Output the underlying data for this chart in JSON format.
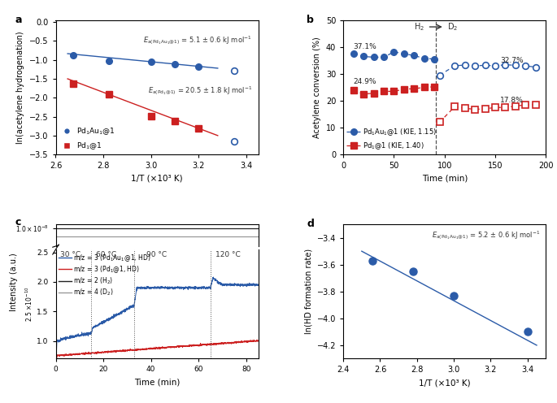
{
  "panel_a": {
    "blue_x": [
      2.675,
      2.825,
      3.0,
      3.1,
      3.2
    ],
    "blue_y": [
      -0.88,
      -1.02,
      -1.05,
      -1.12,
      -1.18
    ],
    "blue_open_x": [
      3.35
    ],
    "blue_open_y": [
      -1.28
    ],
    "blue_open2_x": [
      3.35
    ],
    "blue_open2_y": [
      -3.15
    ],
    "red_x": [
      2.675,
      2.825,
      3.0,
      3.1,
      3.2
    ],
    "red_y": [
      -1.62,
      -1.9,
      -2.48,
      -2.62,
      -2.82
    ],
    "blue_fit_x": [
      2.65,
      3.28
    ],
    "blue_fit_y": [
      -0.835,
      -1.22
    ],
    "red_fit_x": [
      2.65,
      3.28
    ],
    "red_fit_y": [
      -1.5,
      -3.0
    ],
    "xlim": [
      2.6,
      3.45
    ],
    "ylim": [
      -3.5,
      0.05
    ],
    "xticks": [
      2.6,
      2.8,
      3.0,
      3.2,
      3.4
    ],
    "yticks": [
      0,
      -0.5,
      -1.0,
      -1.5,
      -2.0,
      -2.5,
      -3.0,
      -3.5
    ],
    "xlabel": "1/T (×10³ K)",
    "ylabel": "ln(acetylene hydrogenation)",
    "legend_blue": "Pd₁Au₁@1",
    "legend_red": "Pd₁@1"
  },
  "panel_b": {
    "blue_solid_x": [
      10,
      20,
      30,
      40,
      50,
      60,
      70,
      80,
      90
    ],
    "blue_solid_y": [
      37.5,
      36.5,
      36.2,
      36.2,
      38.2,
      37.5,
      36.8,
      35.8,
      35.5
    ],
    "blue_open_x": [
      95,
      110,
      120,
      130,
      140,
      150,
      160,
      170,
      180,
      190
    ],
    "blue_open_y": [
      29.5,
      33.0,
      33.3,
      33.0,
      33.2,
      33.0,
      33.4,
      33.2,
      33.0,
      32.5
    ],
    "red_solid_x": [
      10,
      20,
      30,
      40,
      50,
      60,
      70,
      80,
      90
    ],
    "red_solid_y": [
      24.0,
      22.5,
      22.8,
      23.5,
      23.5,
      24.3,
      24.5,
      25.0,
      25.2
    ],
    "red_open_x": [
      95,
      110,
      120,
      130,
      140,
      150,
      160,
      170,
      180,
      190
    ],
    "red_open_y": [
      12.0,
      17.8,
      17.2,
      16.8,
      17.0,
      17.5,
      17.5,
      18.0,
      18.5,
      18.5
    ],
    "vline_x": 91,
    "xlim": [
      0,
      200
    ],
    "ylim": [
      0,
      50
    ],
    "xticks": [
      0,
      50,
      100,
      150,
      200
    ],
    "yticks": [
      0,
      10,
      20,
      30,
      40,
      50
    ],
    "xlabel": "Time (min)",
    "ylabel": "Acetylene conversion (%)",
    "label_37": "37.1%",
    "label_249": "24.9%",
    "label_327": "32.7%",
    "label_178": "17.8%",
    "legend_blue": "Pd₁Au₁@1 (KIE, 1.15)",
    "legend_red": "Pd₁@1 (KIE, 1.40)"
  },
  "panel_c": {
    "xlim": [
      0,
      85
    ],
    "xticks": [
      0,
      20,
      40,
      60,
      80
    ],
    "xlabel": "Time (min)",
    "ylabel": "Intensity (a.u.)",
    "vlines": [
      15,
      33,
      65
    ],
    "temp_labels": [
      "30 °C",
      "60 °C",
      "90 °C",
      "120 °C"
    ],
    "legend_entries": [
      "m/z = 3 (Pd₁Au₁@1, HD)",
      "m/z = 3 (Pd₁@1, HD)",
      "m/z = 2 (H₂)",
      "m/z = 4 (D₂)"
    ]
  },
  "panel_d": {
    "x": [
      2.56,
      2.78,
      3.0,
      3.4
    ],
    "y": [
      -3.57,
      -3.65,
      -3.83,
      -4.1
    ],
    "fit_x": [
      2.5,
      3.45
    ],
    "fit_y": [
      -3.5,
      -4.2
    ],
    "xlim": [
      2.4,
      3.5
    ],
    "ylim": [
      -4.3,
      -3.3
    ],
    "xticks": [
      2.4,
      2.6,
      2.8,
      3.0,
      3.2,
      3.4
    ],
    "yticks": [
      -3.4,
      -3.6,
      -3.8,
      -4.0,
      -4.2
    ],
    "xlabel": "1/T (×10³ K)",
    "ylabel": "ln(HD formation rate)"
  },
  "colors": {
    "blue": "#2B5BA8",
    "red": "#CC2020",
    "black": "#222222",
    "gray": "#999999"
  }
}
